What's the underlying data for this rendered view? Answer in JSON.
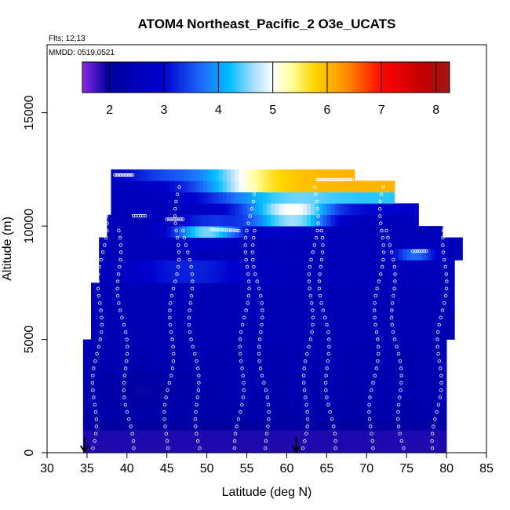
{
  "chart_data": {
    "type": "heatmap",
    "title": "ATOM4 Northeast_Pacific_2 O3e_UCATS",
    "subtitle_flights": "Flts: 12,13",
    "subtitle_dates": "MMDD: 0519,0521",
    "xlabel": "Latitude (deg N)",
    "ylabel": "Altitude (m)",
    "xlim": [
      30,
      85
    ],
    "ylim": [
      0,
      18000
    ],
    "x_ticks": [
      "30",
      "35",
      "40",
      "45",
      "50",
      "55",
      "60",
      "65",
      "70",
      "75",
      "80",
      "85"
    ],
    "y_ticks": [
      "0",
      "5000",
      "10000",
      "15000"
    ],
    "colorbar": {
      "range": [
        1.5,
        8.25
      ],
      "ticks": [
        "2",
        "3",
        "4",
        "5",
        "6",
        "7",
        "8"
      ]
    },
    "markers": [
      34.7,
      61.2
    ],
    "grid": false,
    "legend": "colorbar-top-inset"
  }
}
